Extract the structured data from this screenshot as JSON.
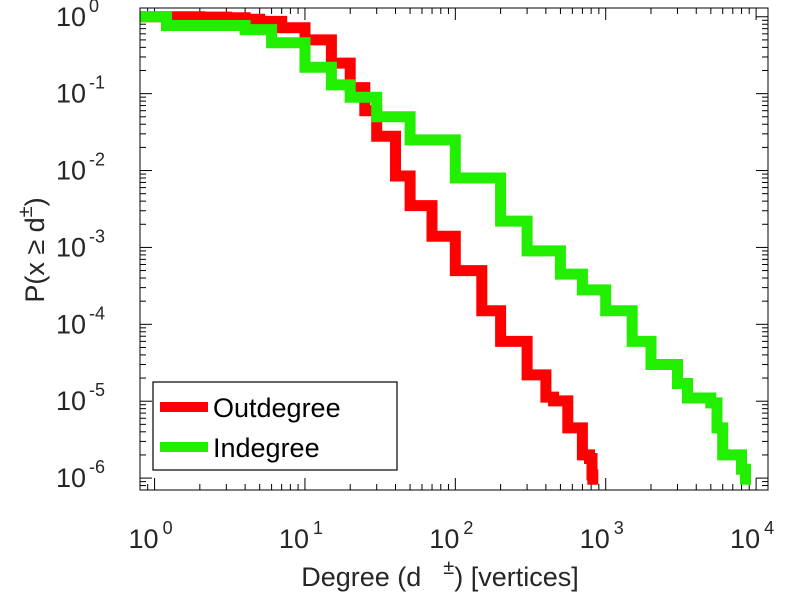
{
  "chart_data": {
    "type": "line",
    "scale": {
      "x": "log",
      "y": "log"
    },
    "xlabel": {
      "before": "Degree (d",
      "sup": "±",
      "after": ") [vertices]"
    },
    "ylabel": {
      "before": "P(x ≥ d",
      "sup": "±",
      "after": ")"
    },
    "xlim": [
      0.8,
      12000
    ],
    "ylim": [
      7e-07,
      1.3
    ],
    "x_ticks": [
      {
        "value": 1,
        "base": "10",
        "exp": "0"
      },
      {
        "value": 10,
        "base": "10",
        "exp": "1"
      },
      {
        "value": 100,
        "base": "10",
        "exp": "2"
      },
      {
        "value": 1000,
        "base": "10",
        "exp": "3"
      },
      {
        "value": 10000,
        "base": "10",
        "exp": "4"
      }
    ],
    "y_ticks": [
      {
        "value": 1,
        "base": "10",
        "exp": "0"
      },
      {
        "value": 0.1,
        "base": "10",
        "exp": "-1"
      },
      {
        "value": 0.01,
        "base": "10",
        "exp": "-2"
      },
      {
        "value": 0.001,
        "base": "10",
        "exp": "-3"
      },
      {
        "value": 0.0001,
        "base": "10",
        "exp": "-4"
      },
      {
        "value": 1e-05,
        "base": "10",
        "exp": "-5"
      },
      {
        "value": 1e-06,
        "base": "10",
        "exp": "-6"
      }
    ],
    "grid": false,
    "legend": "bottom-left",
    "series": [
      {
        "name": "Outdegree",
        "color": "#ff0000",
        "points": [
          [
            0.8,
            1.0
          ],
          [
            1,
            1.0
          ],
          [
            2,
            0.99
          ],
          [
            3,
            0.97
          ],
          [
            4,
            0.93
          ],
          [
            5,
            0.87
          ],
          [
            7,
            0.72
          ],
          [
            10,
            0.5
          ],
          [
            15,
            0.25
          ],
          [
            20,
            0.12
          ],
          [
            25,
            0.06
          ],
          [
            30,
            0.028
          ],
          [
            40,
            0.0085
          ],
          [
            50,
            0.0035
          ],
          [
            70,
            0.0014
          ],
          [
            100,
            0.0005
          ],
          [
            150,
            0.00015
          ],
          [
            200,
            6e-05
          ],
          [
            300,
            2.2e-05
          ],
          [
            400,
            1.13e-05
          ],
          [
            450,
            1.01e-05
          ],
          [
            560,
            4.5e-06
          ],
          [
            700,
            2e-06
          ],
          [
            780,
            1.8e-06
          ],
          [
            810,
            1.1e-06
          ],
          [
            820,
            8.2e-07
          ]
        ]
      },
      {
        "name": "Indegree",
        "color": "#22ee00",
        "points": [
          [
            0.8,
            1.0
          ],
          [
            1,
            1.0
          ],
          [
            1.2,
            0.77
          ],
          [
            2,
            0.77
          ],
          [
            4,
            0.68
          ],
          [
            6,
            0.46
          ],
          [
            10,
            0.22
          ],
          [
            15,
            0.13
          ],
          [
            20,
            0.09
          ],
          [
            30,
            0.05
          ],
          [
            50,
            0.025
          ],
          [
            100,
            0.008
          ],
          [
            200,
            0.0022
          ],
          [
            300,
            0.0009
          ],
          [
            500,
            0.00045
          ],
          [
            700,
            0.00028
          ],
          [
            1000,
            0.00015
          ],
          [
            1500,
            6e-05
          ],
          [
            2000,
            3e-05
          ],
          [
            3000,
            1.7e-05
          ],
          [
            3500,
            1.1e-05
          ],
          [
            5000,
            9.5e-06
          ],
          [
            5500,
            4.5e-06
          ],
          [
            6000,
            2e-06
          ],
          [
            8000,
            1.3e-06
          ],
          [
            8500,
            8.2e-07
          ]
        ]
      }
    ]
  }
}
